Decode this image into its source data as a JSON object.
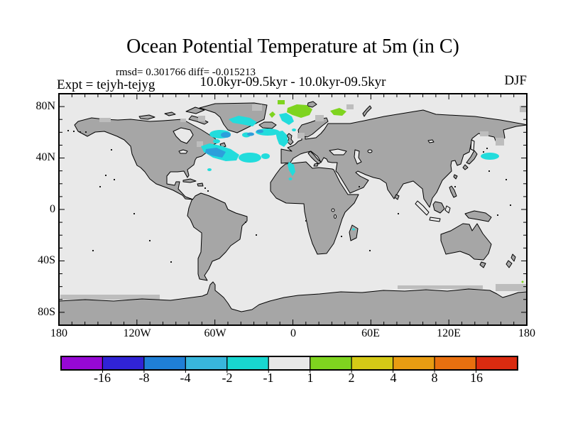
{
  "header": {
    "title": "Ocean Potential Temperature at 5m (in C)",
    "stats_line": "rmsd= 0.301766 diff= -0.015213",
    "experiment_label": "Expt = tejyh-tejyg",
    "period_label": "10.0kyr-09.5kyr - 10.0kyr-09.5kyr",
    "season_label": "DJF"
  },
  "map": {
    "lat_labels": [
      "80N",
      "40N",
      "0",
      "40S",
      "80S"
    ],
    "lon_labels": [
      "180",
      "120W",
      "60W",
      "0",
      "60E",
      "120E",
      "180"
    ],
    "colors": {
      "ocean": "#e9e9e9",
      "land": "#a6a6a6",
      "ice": "#bdbdbd",
      "coast": "#000000"
    }
  },
  "palette": {
    "cool_minor": "#22dcdc",
    "cool_strong": "#2d9fdb",
    "warm_minor": "#7fd41f"
  },
  "colorbar": {
    "labels": [
      "-16",
      "-8",
      "-4",
      "-2",
      "-1",
      "1",
      "2",
      "4",
      "8",
      "16"
    ],
    "colors": [
      "#9608d4",
      "#3023d6",
      "#1f7fd6",
      "#38b6dc",
      "#18d6d0",
      "#e8e8e8",
      "#7fd41f",
      "#d4c916",
      "#e89c12",
      "#e8700f",
      "#da2b10"
    ]
  },
  "chart_data": {
    "type": "heatmap",
    "title": "Ocean Potential Temperature at 5m (in C)",
    "subtitle": "10.0kyr-09.5kyr - 10.0kyr-09.5kyr",
    "experiment": "tejyh-tejyg",
    "season": "DJF",
    "rmsd": 0.301766,
    "diff": -0.015213,
    "depth": "5m",
    "units": "C",
    "projection": "equirectangular global (180W-180E, 90S-90N)",
    "x_axis": {
      "tick_labels": [
        "180",
        "120W",
        "60W",
        "0",
        "60E",
        "120E",
        "180"
      ],
      "range_deg": [
        -180,
        180
      ],
      "minor_tick_deg": 10
    },
    "y_axis": {
      "tick_labels": [
        "80N",
        "40N",
        "0",
        "40S",
        "80S"
      ],
      "range_deg": [
        -90,
        90
      ],
      "minor_tick_deg": 10
    },
    "colorbar_levels": [
      -16,
      -8,
      -4,
      -2,
      -1,
      1,
      2,
      4,
      8,
      16
    ],
    "colorbar_colors": [
      "#9608d4",
      "#3023d6",
      "#1f7fd6",
      "#38b6dc",
      "#18d6d0",
      "#e8e8e8",
      "#7fd41f",
      "#d4c916",
      "#e89c12",
      "#e8700f",
      "#da2b10"
    ],
    "anomaly_regions": [
      {
        "region": "Irminger Sea / south of Iceland and SE Greenland coast",
        "value": "-2 to -1 C",
        "note": "cyan patches with -4 to -2 C cores"
      },
      {
        "region": "NW Atlantic off US east coast (Gulf Stream)",
        "value": "-4 to -1 C"
      },
      {
        "region": "West of British Isles",
        "value": "-2 to -1 C"
      },
      {
        "region": "Off Morocco coast",
        "value": "-2 to -1 C"
      },
      {
        "region": "NW Pacific east of Japan",
        "value": "-2 to -1 C"
      },
      {
        "region": "Barents Sea and north of Scandinavia",
        "value": "+1 to +2 C"
      },
      {
        "region": "Remainder of global ocean",
        "value": "-1 to +1 C (near zero, background gray)"
      }
    ]
  }
}
